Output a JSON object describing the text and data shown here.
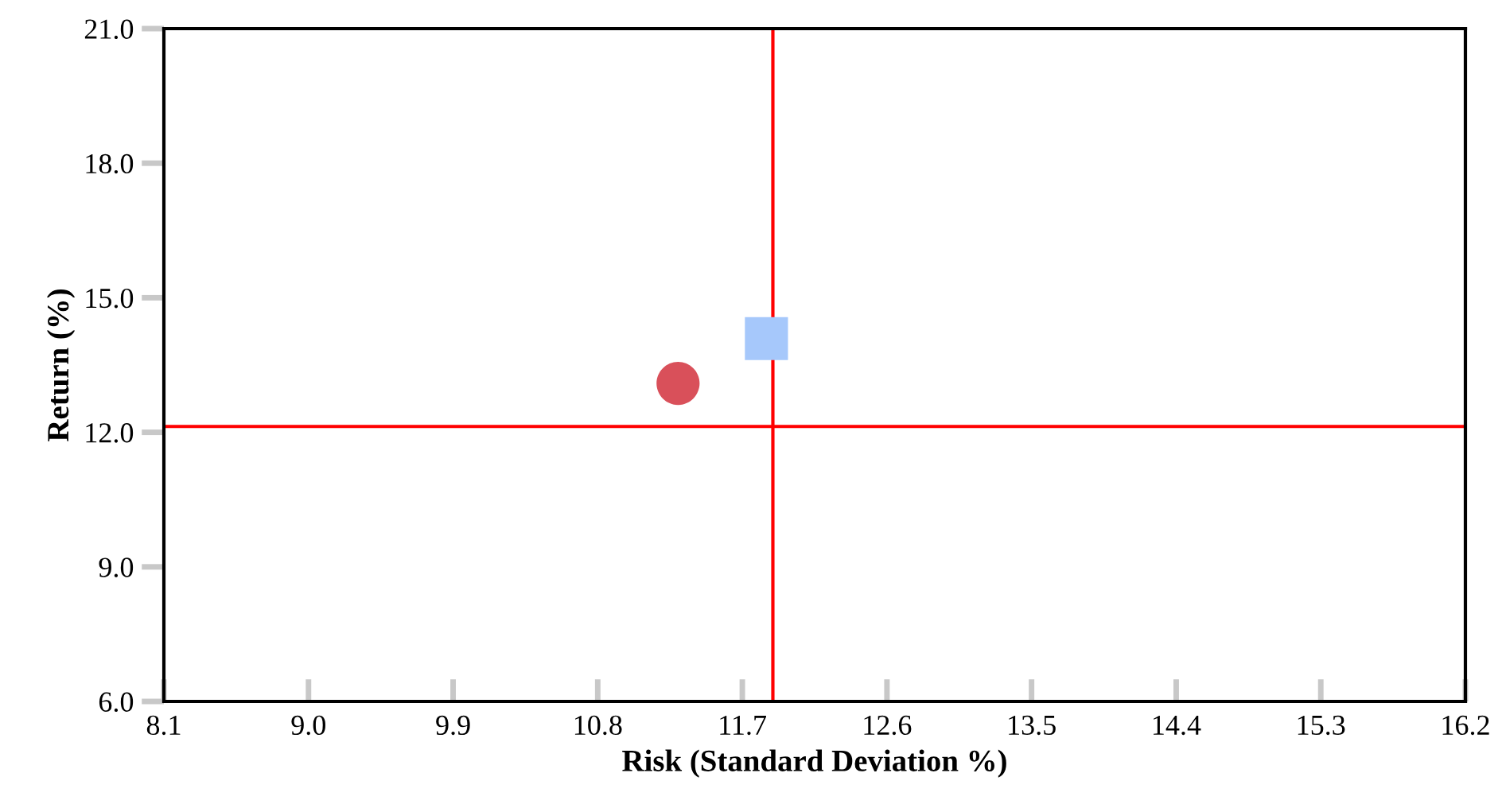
{
  "chart_data": {
    "type": "scatter",
    "xlabel": "Risk (Standard Deviation %)",
    "ylabel": "Return (%)",
    "series": [
      {
        "color": "#d9505a",
        "x": [
          11.3
        ],
        "values": [
          13.09
        ],
        "marker": "circle"
      },
      {
        "color": "#a6c8fb",
        "x": [
          11.85
        ],
        "values": [
          14.09
        ],
        "marker": "square"
      }
    ],
    "xlim": [
      8.1,
      16.2
    ],
    "xticks": [
      8.1,
      {
        "value": 9,
        "label": "9.0"
      },
      9.9,
      10.8,
      11.7,
      12.6,
      13.5,
      14.4,
      15.3,
      16.2
    ],
    "ylim": [
      6,
      21
    ],
    "yticks": [
      {
        "value": 6,
        "label": "6.0"
      },
      {
        "value": 9,
        "label": "9.0"
      },
      {
        "value": 12,
        "label": "12.0"
      },
      {
        "value": 15,
        "label": "15.0"
      },
      {
        "value": 18,
        "label": "18.0"
      },
      {
        "value": 21,
        "label": "21.0"
      }
    ],
    "ref_lines": [
      {
        "axis": "x",
        "value": 11.89,
        "color": "#ff0000"
      },
      {
        "axis": "y",
        "value": 12.13,
        "color": "#ff0000"
      }
    ],
    "grid": false
  }
}
